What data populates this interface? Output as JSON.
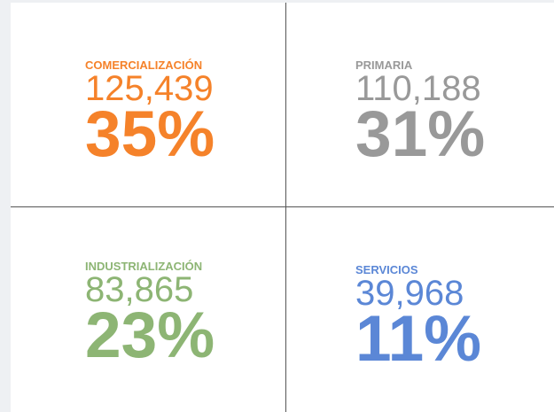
{
  "panels": [
    {
      "label": "COMERCIALIZACIÓN",
      "count": "125,439",
      "percent": "35%",
      "color": "#f5822a"
    },
    {
      "label": "PRIMARIA",
      "count": "110,188",
      "percent": "31%",
      "color": "#999999"
    },
    {
      "label": "INDUSTRIALIZACIÓN",
      "count": "83,865",
      "percent": "23%",
      "color": "#8db574"
    },
    {
      "label": "SERVICIOS",
      "count": "39,968",
      "percent": "11%",
      "color": "#5b87d6"
    }
  ]
}
